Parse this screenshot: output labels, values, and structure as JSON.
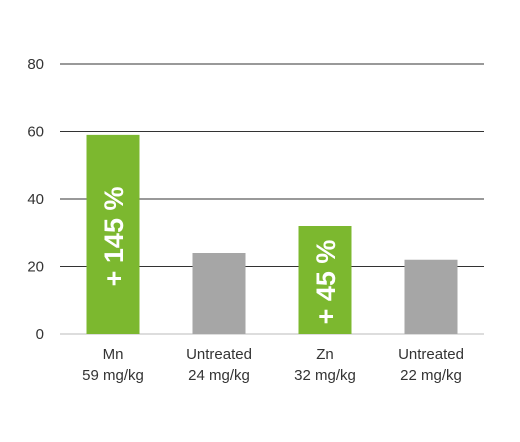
{
  "chart_data": {
    "type": "bar",
    "title": "",
    "xlabel": "",
    "ylabel": "",
    "ylim": [
      0,
      80
    ],
    "yticks": [
      0,
      20,
      40,
      60,
      80
    ],
    "grid": true,
    "categories": [
      {
        "line1": "Mn",
        "line2": "59 mg/kg"
      },
      {
        "line1": "Untreated",
        "line2": "24 mg/kg"
      },
      {
        "line1": "Zn",
        "line2": "32 mg/kg"
      },
      {
        "line1": "Untreated",
        "line2": "22 mg/kg"
      }
    ],
    "values": [
      59,
      24,
      32,
      22
    ],
    "bar_colors": [
      "#7cb82f",
      "#a6a6a6",
      "#7cb82f",
      "#a6a6a6"
    ],
    "bar_labels": [
      "+ 145 %",
      "",
      "+ 45 %",
      ""
    ],
    "grid_color": "#333333",
    "axis_color": "#bbbbbb"
  }
}
